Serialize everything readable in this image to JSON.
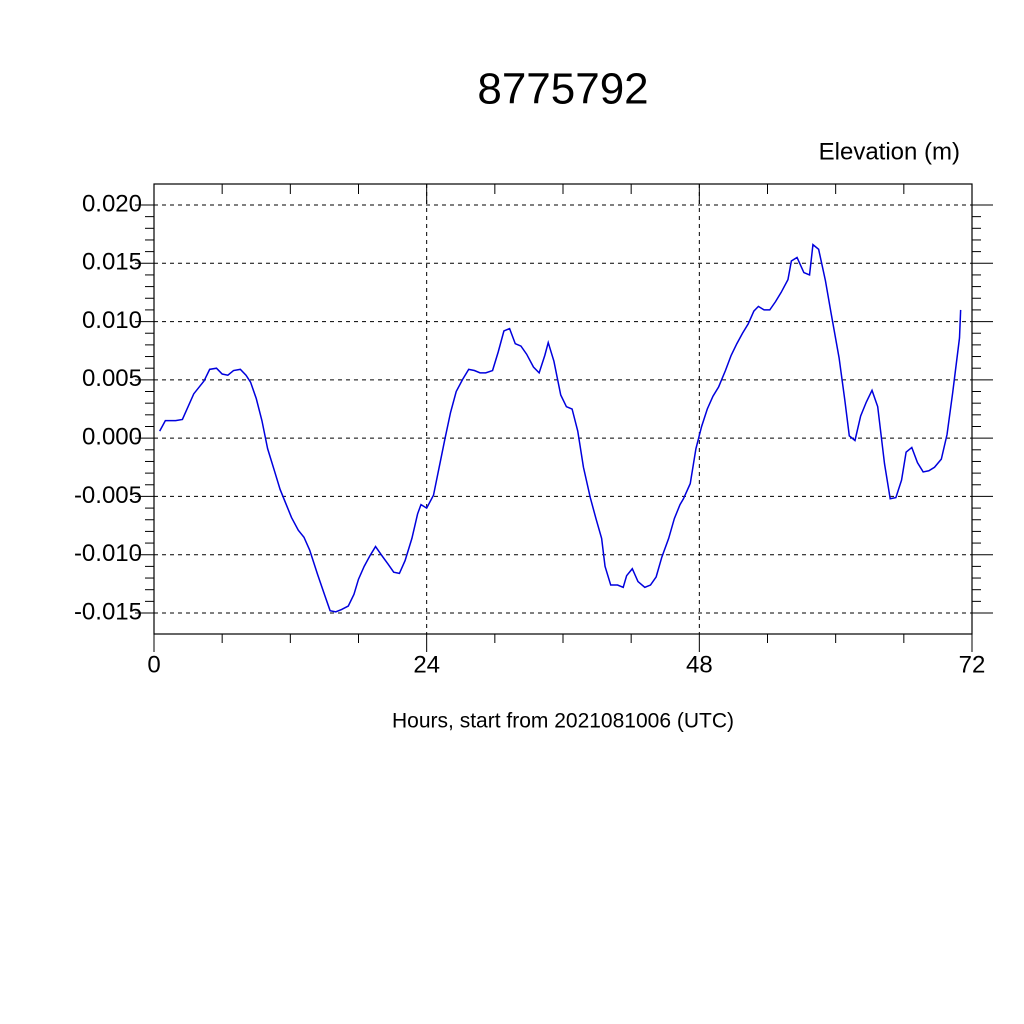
{
  "chart_data": {
    "type": "line",
    "title": "8775792",
    "ylabel": "Elevation (m)",
    "xlabel": "Hours, start from 2021081006 (UTC)",
    "xlim": [
      0,
      72
    ],
    "xticks": [
      0,
      24,
      48,
      72
    ],
    "ylim": [
      -0.0168,
      0.0218
    ],
    "yticks": [
      {
        "value": -0.015,
        "label": "-0.015"
      },
      {
        "value": -0.01,
        "label": "-0.010"
      },
      {
        "value": -0.005,
        "label": "-0.005"
      },
      {
        "value": 0,
        "label": "0.000"
      },
      {
        "value": 0.005,
        "label": "0.005"
      },
      {
        "value": 0.01,
        "label": "0.010"
      },
      {
        "value": 0.015,
        "label": "0.015"
      },
      {
        "value": 0.02,
        "label": "0.020"
      }
    ],
    "grid": true,
    "color": "#0000dd",
    "x": [
      0.5,
      1.0,
      1.9,
      2.5,
      3.5,
      4.4,
      4.9,
      5.5,
      6.0,
      6.5,
      7.0,
      7.6,
      8.1,
      8.5,
      9.0,
      9.5,
      10.0,
      10.6,
      11.1,
      11.6,
      12.1,
      12.7,
      13.2,
      13.7,
      14.4,
      15.0,
      15.5,
      16.0,
      16.5,
      17.1,
      17.6,
      18.0,
      18.5,
      19.0,
      19.5,
      20.0,
      20.6,
      21.1,
      21.6,
      22.1,
      22.7,
      23.2,
      23.5,
      24.0,
      24.6,
      25.1,
      25.6,
      26.1,
      26.6,
      27.2,
      27.7,
      28.2,
      28.7,
      29.2,
      29.8,
      30.3,
      30.8,
      31.3,
      31.8,
      32.3,
      32.8,
      33.4,
      33.9,
      34.4,
      34.7,
      35.2,
      35.8,
      36.3,
      36.8,
      37.3,
      37.8,
      38.4,
      38.9,
      39.4,
      39.7,
      40.2,
      40.8,
      41.3,
      41.6,
      42.1,
      42.6,
      43.2,
      43.7,
      44.2,
      44.7,
      45.3,
      45.8,
      46.3,
      46.6,
      47.2,
      47.7,
      48.2,
      48.7,
      49.2,
      49.7,
      50.3,
      50.8,
      51.3,
      51.8,
      52.3,
      52.8,
      53.2,
      53.7,
      54.2,
      54.7,
      55.2,
      55.8,
      56.1,
      56.6,
      57.2,
      57.7,
      58.0,
      58.5,
      59.1,
      59.6,
      60.3,
      60.8,
      61.2,
      61.7,
      62.2,
      62.7,
      63.2,
      63.7,
      64.3,
      64.8,
      65.3,
      65.8,
      66.2,
      66.7,
      67.2,
      67.7,
      68.2,
      68.7,
      69.3,
      69.8,
      70.3,
      70.9,
      71.0
    ],
    "values": [
      0.0006,
      0.0015,
      0.0015,
      0.0016,
      0.0038,
      0.0049,
      0.0059,
      0.006,
      0.0055,
      0.0054,
      0.0058,
      0.0059,
      0.0054,
      0.0048,
      0.0034,
      0.0015,
      -0.0009,
      -0.0028,
      -0.0044,
      -0.0056,
      -0.0068,
      -0.0079,
      -0.0085,
      -0.0096,
      -0.0117,
      -0.0134,
      -0.0148,
      -0.0149,
      -0.0147,
      -0.0144,
      -0.0134,
      -0.0121,
      -0.011,
      -0.0101,
      -0.0093,
      -0.01,
      -0.0108,
      -0.0115,
      -0.0116,
      -0.0105,
      -0.0086,
      -0.0065,
      -0.0057,
      -0.006,
      -0.0049,
      -0.0025,
      -0.0001,
      0.0022,
      0.004,
      0.0051,
      0.0059,
      0.0058,
      0.0056,
      0.0056,
      0.0058,
      0.0074,
      0.0092,
      0.0094,
      0.0081,
      0.0079,
      0.0072,
      0.0061,
      0.0056,
      0.0071,
      0.0082,
      0.0066,
      0.0037,
      0.0027,
      0.0025,
      0.0006,
      -0.0025,
      -0.0051,
      -0.0069,
      -0.0086,
      -0.011,
      -0.0126,
      -0.0126,
      -0.0128,
      -0.0118,
      -0.0112,
      -0.0123,
      -0.0128,
      -0.0126,
      -0.0119,
      -0.0102,
      -0.0086,
      -0.0069,
      -0.0057,
      -0.0052,
      -0.0039,
      -0.0009,
      0.001,
      0.0025,
      0.0036,
      0.0044,
      0.0058,
      0.0071,
      0.0081,
      0.009,
      0.0098,
      0.0109,
      0.0113,
      0.011,
      0.011,
      0.0117,
      0.0125,
      0.0136,
      0.0152,
      0.0155,
      0.0142,
      0.014,
      0.0166,
      0.0162,
      0.0135,
      0.0107,
      0.0069,
      0.0033,
      0.0002,
      -0.0002,
      0.0019,
      0.0031,
      0.0041,
      0.0027,
      -0.0022,
      -0.0052,
      -0.0051,
      -0.0036,
      -0.0012,
      -0.0008,
      -0.0021,
      -0.0029,
      -0.0028,
      -0.0025,
      -0.0018,
      0.0003,
      0.0039,
      0.0086,
      0.011
    ]
  }
}
